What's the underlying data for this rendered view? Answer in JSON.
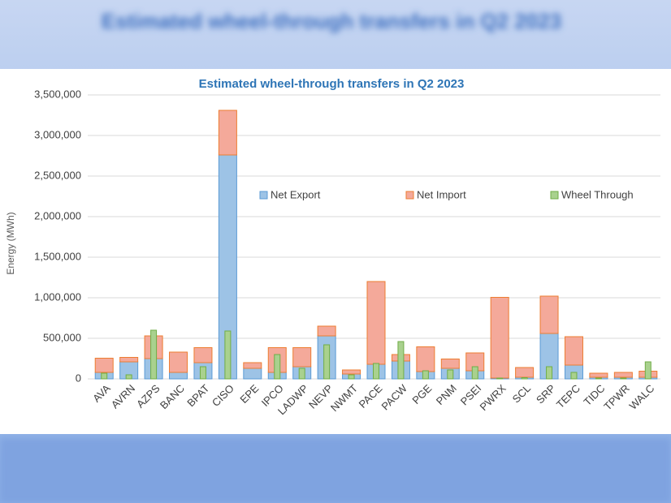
{
  "chart_data": {
    "type": "bar",
    "stacked": true,
    "title": "Estimated wheel-through transfers in Q2 2023",
    "y_label": "Energy (MWh)",
    "categories": [
      "AVA",
      "AVRN",
      "AZPS",
      "BANC",
      "BPAT",
      "CISO",
      "EPE",
      "IPCO",
      "LADWP",
      "NEVP",
      "NWMT",
      "PACE",
      "PACW",
      "PGE",
      "PNM",
      "PSEI",
      "PWRX",
      "SCL",
      "SRP",
      "TEPC",
      "TIDC",
      "TPWR",
      "WALC"
    ],
    "series": [
      {
        "name": "Net Export",
        "color": "#9dc3e6",
        "stack": true,
        "values": [
          80000,
          210000,
          250000,
          80000,
          200000,
          2760000,
          130000,
          80000,
          150000,
          530000,
          60000,
          180000,
          220000,
          90000,
          130000,
          100000,
          10000,
          20000,
          560000,
          170000,
          20000,
          20000,
          20000
        ]
      },
      {
        "name": "Net Import",
        "color": "#f4a99a",
        "stack": true,
        "values": [
          175000,
          55000,
          280000,
          250000,
          185000,
          550000,
          70000,
          305000,
          235000,
          120000,
          50000,
          1020000,
          80000,
          305000,
          115000,
          220000,
          995000,
          120000,
          460000,
          350000,
          50000,
          60000,
          75000
        ]
      },
      {
        "name": "Wheel Through",
        "color": "#a9d18e",
        "stack": false,
        "values": [
          70000,
          50000,
          600000,
          0,
          150000,
          590000,
          0,
          300000,
          130000,
          420000,
          50000,
          190000,
          460000,
          100000,
          110000,
          150000,
          10000,
          15000,
          150000,
          80000,
          10000,
          10000,
          210000
        ]
      }
    ],
    "ylim": [
      0,
      3500000
    ],
    "yticks": [
      0,
      {
        "value": 500000,
        "label": "500,000"
      },
      {
        "value": 1000000,
        "label": "1,000,000"
      },
      {
        "value": 1500000,
        "label": "1,500,000"
      },
      {
        "value": 2000000,
        "label": "2,000,000"
      },
      {
        "value": 2500000,
        "label": "2,500,000"
      },
      {
        "value": 3000000,
        "label": "3,000,000"
      },
      {
        "value": 3500000,
        "label": "3,500,000"
      }
    ],
    "grid": true,
    "legend": "top"
  }
}
